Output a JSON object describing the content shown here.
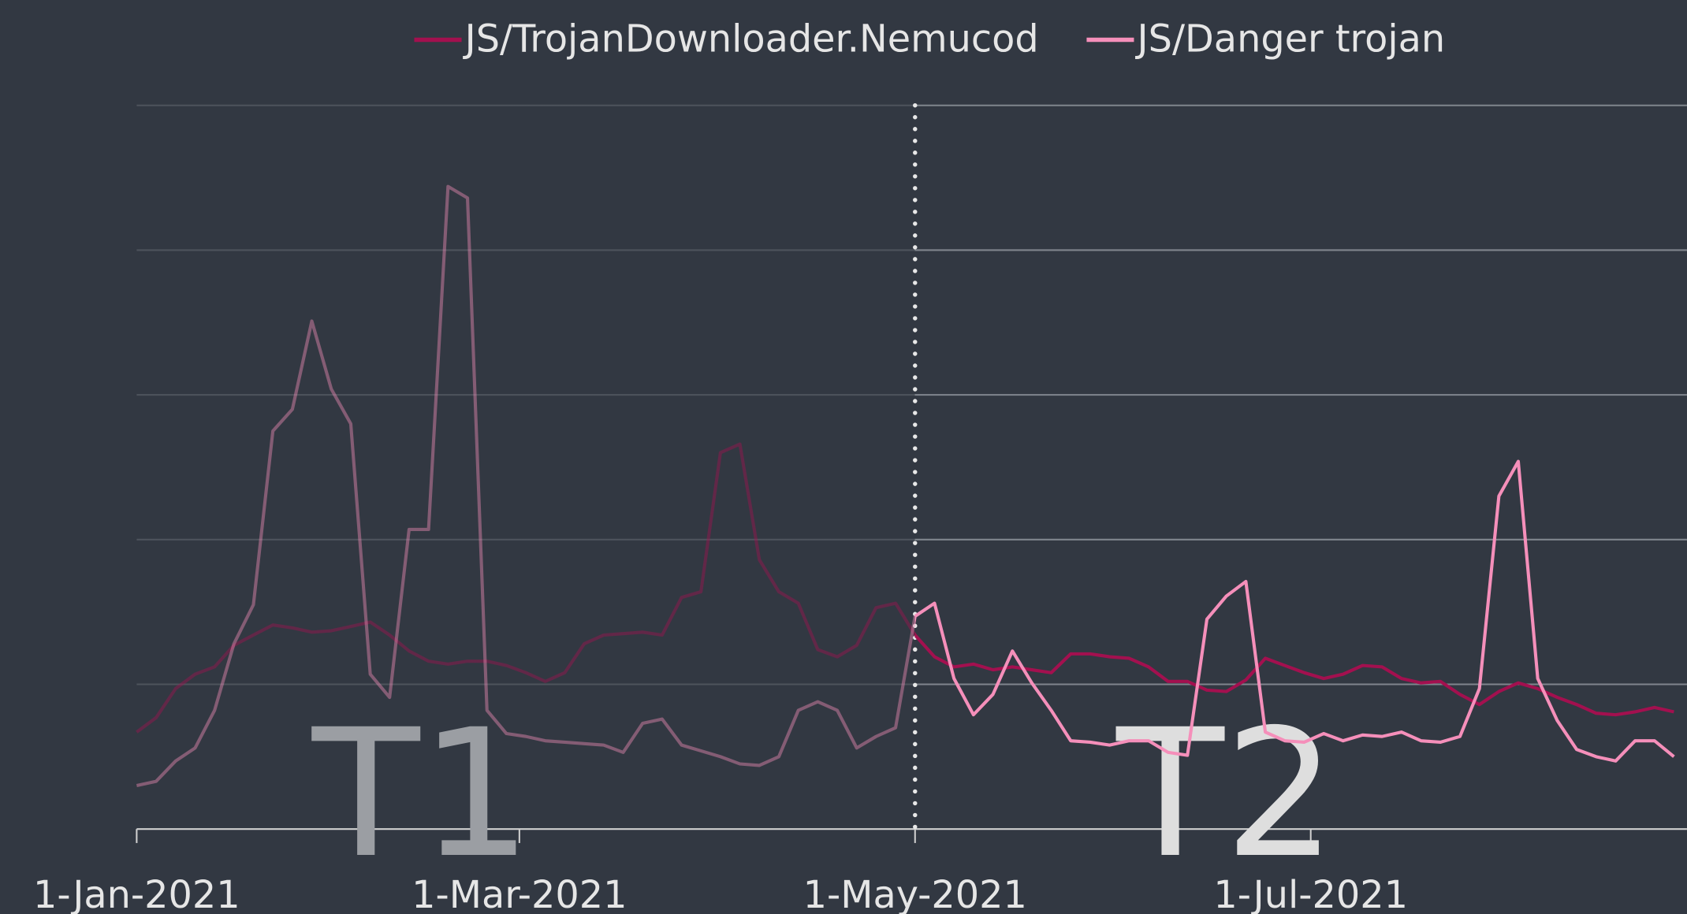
{
  "chart_data": {
    "type": "line",
    "x": [
      "2021-01-01",
      "2021-01-04",
      "2021-01-07",
      "2021-01-10",
      "2021-01-13",
      "2021-01-16",
      "2021-01-19",
      "2021-01-22",
      "2021-01-25",
      "2021-01-28",
      "2021-01-31",
      "2021-02-03",
      "2021-02-06",
      "2021-02-09",
      "2021-02-12",
      "2021-02-15",
      "2021-02-18",
      "2021-02-21",
      "2021-02-24",
      "2021-02-27",
      "2021-03-02",
      "2021-03-05",
      "2021-03-08",
      "2021-03-11",
      "2021-03-14",
      "2021-03-17",
      "2021-03-20",
      "2021-03-23",
      "2021-03-26",
      "2021-03-29",
      "2021-04-01",
      "2021-04-04",
      "2021-04-07",
      "2021-04-10",
      "2021-04-13",
      "2021-04-16",
      "2021-04-19",
      "2021-04-22",
      "2021-04-25",
      "2021-04-28",
      "2021-05-01",
      "2021-05-04",
      "2021-05-07",
      "2021-05-10",
      "2021-05-13",
      "2021-05-16",
      "2021-05-19",
      "2021-05-22",
      "2021-05-25",
      "2021-05-28",
      "2021-05-31",
      "2021-06-03",
      "2021-06-06",
      "2021-06-09",
      "2021-06-12",
      "2021-06-15",
      "2021-06-18",
      "2021-06-21",
      "2021-06-24",
      "2021-06-27",
      "2021-06-30",
      "2021-07-03",
      "2021-07-06",
      "2021-07-09",
      "2021-07-12",
      "2021-07-15",
      "2021-07-18",
      "2021-07-21",
      "2021-07-24",
      "2021-07-27",
      "2021-07-30",
      "2021-08-02",
      "2021-08-05",
      "2021-08-08",
      "2021-08-11",
      "2021-08-14",
      "2021-08-17",
      "2021-08-20",
      "2021-08-23",
      "2021-08-26"
    ],
    "series": [
      {
        "name": "JS/TrojanDownloader.Nemucod",
        "color": "#a3104f",
        "values": [
          0.67,
          0.77,
          0.97,
          1.07,
          1.12,
          1.27,
          1.34,
          1.41,
          1.39,
          1.36,
          1.37,
          1.4,
          1.43,
          1.34,
          1.23,
          1.16,
          1.14,
          1.16,
          1.16,
          1.13,
          1.08,
          1.02,
          1.08,
          1.28,
          1.34,
          1.35,
          1.36,
          1.34,
          1.6,
          1.64,
          2.6,
          2.66,
          1.86,
          1.64,
          1.56,
          1.24,
          1.19,
          1.27,
          1.53,
          1.56,
          1.34,
          1.19,
          1.12,
          1.14,
          1.1,
          1.12,
          1.1,
          1.08,
          1.21,
          1.21,
          1.19,
          1.18,
          1.12,
          1.02,
          1.02,
          0.96,
          0.95,
          1.03,
          1.18,
          1.13,
          1.08,
          1.04,
          1.07,
          1.13,
          1.12,
          1.04,
          1.01,
          1.02,
          0.93,
          0.86,
          0.95,
          1.01,
          0.97,
          0.91,
          0.86,
          0.8,
          0.79,
          0.81,
          0.84,
          0.81
        ]
      },
      {
        "name": "JS/Danger trojan",
        "color": "#f58fba",
        "values": [
          0.3,
          0.33,
          0.47,
          0.56,
          0.82,
          1.28,
          1.55,
          2.75,
          2.9,
          3.51,
          3.04,
          2.8,
          1.07,
          0.91,
          2.07,
          2.07,
          4.44,
          4.36,
          0.82,
          0.66,
          0.64,
          0.61,
          0.6,
          0.59,
          0.58,
          0.53,
          0.73,
          0.76,
          0.58,
          0.54,
          0.5,
          0.45,
          0.44,
          0.5,
          0.82,
          0.88,
          0.82,
          0.56,
          0.64,
          0.7,
          1.47,
          1.56,
          1.04,
          0.79,
          0.93,
          1.23,
          1.01,
          0.82,
          0.61,
          0.6,
          0.58,
          0.61,
          0.61,
          0.53,
          0.51,
          1.45,
          1.61,
          1.71,
          0.67,
          0.61,
          0.6,
          0.66,
          0.61,
          0.65,
          0.64,
          0.67,
          0.61,
          0.6,
          0.64,
          0.97,
          2.3,
          2.54,
          1.04,
          0.75,
          0.55,
          0.5,
          0.47,
          0.61,
          0.61,
          0.5
        ]
      }
    ],
    "xlim": [
      "2021-01-01",
      "2021-08-28"
    ],
    "xticks": [
      {
        "value": "2021-01-01",
        "label": "1-Jan-2021"
      },
      {
        "value": "2021-03-01",
        "label": "1-Mar-2021"
      },
      {
        "value": "2021-05-01",
        "label": "1-May-2021"
      },
      {
        "value": "2021-07-01",
        "label": "1-Jul-2021"
      }
    ],
    "ylim": [
      0,
      5
    ],
    "yticks": [
      1,
      2,
      3,
      4,
      5
    ],
    "grid": true,
    "legend": "top",
    "divider": "2021-05-01",
    "annotations": [
      {
        "text": "T1",
        "x": "2021-02-14"
      },
      {
        "text": "T2",
        "x": "2021-06-18"
      }
    ]
  }
}
